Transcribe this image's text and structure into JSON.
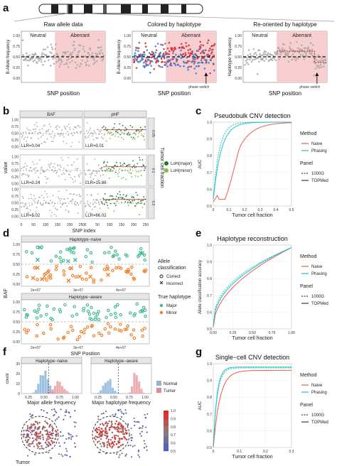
{
  "panels": {
    "a": {
      "label": "a",
      "subplots": [
        {
          "title": "Raw allele data",
          "neutral": "Neutral",
          "aberrant": "Aberrant",
          "xlabel": "SNP position",
          "ylabel": "B-Allele frequency",
          "annotation": ""
        },
        {
          "title": "Colored by haplotype",
          "neutral": "Neutral",
          "aberrant": "Aberrant",
          "xlabel": "SNP position",
          "ylabel": "B-Allele frequency",
          "annotation": "phase switch"
        },
        {
          "title": "Re-oriented by haplotype",
          "neutral": "Neutral",
          "aberrant": "Aberrant",
          "xlabel": "SNP position",
          "ylabel": "Haplotype frequency",
          "annotation": "phase switch"
        }
      ],
      "yticks": [
        "0.00",
        "0.25",
        "0.50",
        "0.75",
        "1.00"
      ]
    },
    "b": {
      "label": "b",
      "strips": [
        "BAF",
        "pHF"
      ],
      "row_strips": [
        "0.05",
        "0.1",
        "0.2"
      ],
      "row_strip_title": "Tumor cell fraction",
      "llr_left": [
        "LLR=0.04",
        "LLR=0.24",
        "LLR=5.02"
      ],
      "llr_right": [
        "LLR=3.01",
        "LLR=15.86",
        "LLR=66.02"
      ],
      "yticks": [
        "0.00",
        "0.25",
        "0.50",
        "0.75",
        "1.00"
      ],
      "xticks": [
        "0",
        "50",
        "100",
        "150",
        "200",
        "250"
      ],
      "ylabel": "value",
      "xlabel": "SNP index",
      "legend": [
        {
          "label": "LoH(major)",
          "color": "#1a7a2e"
        },
        {
          "label": "LoH(minor)",
          "color": "#7fbf3f"
        }
      ]
    },
    "c": {
      "label": "c",
      "title": "Pseudobulk CNV detection",
      "xlabel": "Tumor cell fraction",
      "ylabel": "AUC",
      "xticks": [
        "0",
        "0.1",
        "0.2",
        "0.3",
        "0.4",
        "0.5"
      ],
      "yticks": [
        "0.5",
        "0.6",
        "0.7",
        "0.8",
        "0.9",
        "1.0"
      ]
    },
    "d": {
      "label": "d",
      "strips": [
        "Haplotype−naive",
        "Haplotype−aware"
      ],
      "yticks": [
        "0.00",
        "0.25",
        "0.50",
        "0.75",
        "1.00"
      ],
      "xticks": [
        "2e+07",
        "3e+07",
        "4e+07"
      ],
      "ylabel": "BAF",
      "xlabel": "SNP Position",
      "legend_allele_title": "Allele classification",
      "legend_allele": [
        "Correct",
        "Incorrect"
      ],
      "legend_hap_title": "True haplotype",
      "legend_hap": [
        {
          "label": "Major",
          "color": "#3cb88f"
        },
        {
          "label": "Minor",
          "color": "#ef7c23"
        }
      ]
    },
    "e": {
      "label": "e",
      "title": "Haplotype reconstruction",
      "xlabel": "Tumor cell fraction",
      "ylabel": "Allele classification accuracy",
      "xticks": [
        "0.00",
        "0.25",
        "0.50",
        "0.75",
        "1.00"
      ],
      "yticks": [
        "0.5",
        "0.6",
        "0.7",
        "0.8",
        "0.9",
        "1.0"
      ]
    },
    "f": {
      "label": "f",
      "strips": [
        "Haplotype−naive",
        "Haplotype−aware"
      ],
      "xlabels": [
        "Major allele frequency",
        "Major haplotype frequency"
      ],
      "ylabel": "count",
      "xticks": [
        "0.25",
        "0.50",
        "0.75",
        "1.00"
      ],
      "yticks": [
        "0",
        "10",
        "20",
        "30"
      ],
      "legend": [
        {
          "label": "Normal",
          "color": "#8db6dd"
        },
        {
          "label": "Tumor",
          "color": "#e28a92"
        }
      ],
      "colorbar": [
        "1.0",
        "0.9",
        "0.8",
        "0.7",
        "0.6",
        "0.5"
      ],
      "tumor_label": "Tumor"
    },
    "g": {
      "label": "g",
      "title": "Single−cell CNV detection",
      "xlabel": "Tumor cell fraction",
      "ylabel": "AUC",
      "xticks": [
        "0",
        "0.1",
        "0.2",
        "0.3"
      ],
      "yticks": [
        "0.5",
        "0.6",
        "0.7",
        "0.8",
        "0.9",
        "1.0"
      ]
    }
  },
  "legend_common": {
    "method_title": "Method",
    "methods": [
      {
        "label": "Naive",
        "color": "#f05a4f"
      },
      {
        "label": "Phasing",
        "color": "#22c1c3"
      }
    ],
    "panel_title": "Panel",
    "panels": [
      "1000G",
      "TOPMed"
    ]
  },
  "colors": {
    "gray": "#a9a9a9",
    "red": "#d7262b",
    "blue": "#3c78c8",
    "pink": "#f7cfd1",
    "naive": "#f05a4f",
    "phasing": "#22c1c3",
    "major": "#3cb88f",
    "minor": "#ef7c23"
  }
}
